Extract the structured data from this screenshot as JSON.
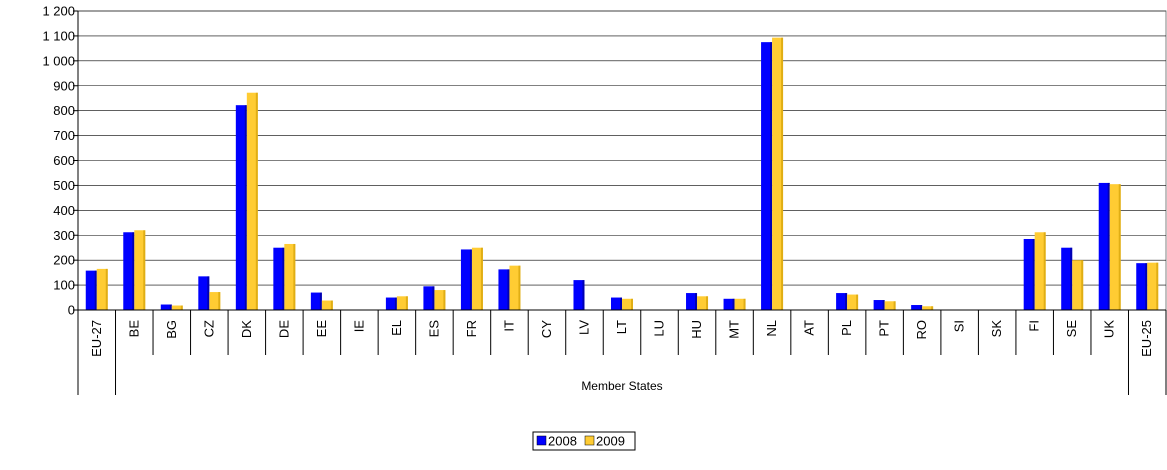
{
  "chart_data": {
    "type": "bar",
    "categories": [
      "EU-27",
      "BE",
      "BG",
      "CZ",
      "DK",
      "DE",
      "EE",
      "IE",
      "EL",
      "ES",
      "FR",
      "IT",
      "CY",
      "LV",
      "LT",
      "LU",
      "HU",
      "MT",
      "NL",
      "AT",
      "PL",
      "PT",
      "RO",
      "SI",
      "SK",
      "FI",
      "SE",
      "UK",
      "EU-25"
    ],
    "series": [
      {
        "name": "2008",
        "color": "#0000FF",
        "values": [
          158,
          312,
          22,
          135,
          822,
          250,
          70,
          0,
          50,
          95,
          243,
          163,
          0,
          120,
          50,
          0,
          68,
          45,
          1075,
          0,
          68,
          40,
          20,
          0,
          0,
          285,
          250,
          510,
          188
        ]
      },
      {
        "name": "2009",
        "color": "#FFCC33",
        "values": [
          165,
          320,
          18,
          72,
          872,
          265,
          38,
          0,
          55,
          80,
          250,
          178,
          0,
          0,
          45,
          0,
          55,
          45,
          1093,
          0,
          62,
          35,
          15,
          0,
          0,
          312,
          200,
          505,
          190
        ]
      }
    ],
    "y_ticks": [
      "0",
      "100",
      "200",
      "300",
      "400",
      "500",
      "600",
      "700",
      "800",
      "900",
      "1 000",
      "1 100",
      "1 200"
    ],
    "ylim": [
      0,
      1200
    ],
    "xlabel": "Member States",
    "grid": true,
    "legend_position": "bottom-center"
  }
}
